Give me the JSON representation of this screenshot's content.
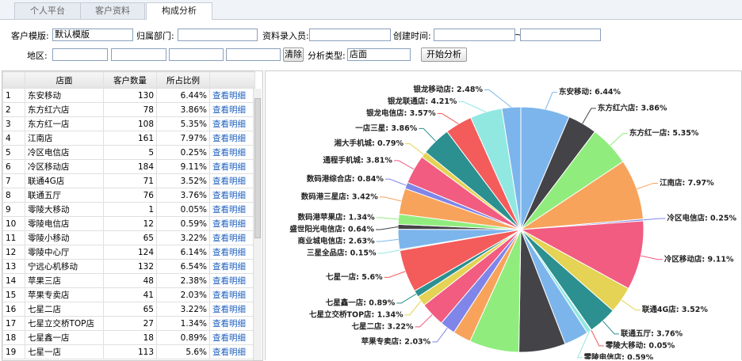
{
  "tabs": [
    "个人平台",
    "客户资料",
    "构成分析"
  ],
  "form": {
    "template_label": "客户模版:",
    "template_value": "默认模版",
    "dept_label": "归属部门:",
    "entry_label": "资料录入员:",
    "created_label": "创建时间:",
    "range_sep": "~",
    "region_label": "地区:",
    "clear_button": "清除",
    "analysis_label": "分析类型:",
    "analysis_value": "店面",
    "start_button": "开始分析"
  },
  "table": {
    "headers": [
      "店面",
      "客户数量",
      "所占比例"
    ],
    "rows": [
      [
        "1",
        "东安移动",
        130,
        "6.44%",
        "查看明细"
      ],
      [
        "2",
        "东方红六店",
        78,
        "3.86%",
        "查看明细"
      ],
      [
        "3",
        "东方红一店",
        108,
        "5.35%",
        "查看明细"
      ],
      [
        "4",
        "江南店",
        161,
        "7.97%",
        "查看明细"
      ],
      [
        "5",
        "冷区电信店",
        5,
        "0.25%",
        "查看明细"
      ],
      [
        "6",
        "冷区移动店",
        184,
        "9.11%",
        "查看明细"
      ],
      [
        "7",
        "联通4G店",
        71,
        "3.52%",
        "查看明细"
      ],
      [
        "8",
        "联通五厅",
        76,
        "3.76%",
        "查看明细"
      ],
      [
        "9",
        "零陵大移动",
        1,
        "0.05%",
        "查看明细"
      ],
      [
        "10",
        "零陵电信店",
        12,
        "0.59%",
        "查看明细"
      ],
      [
        "11",
        "零陵小移动",
        65,
        "3.22%",
        "查看明细"
      ],
      [
        "12",
        "零陵中心厅",
        124,
        "6.14%",
        "查看明细"
      ],
      [
        "13",
        "宁远心机移动",
        132,
        "6.54%",
        "查看明细"
      ],
      [
        "14",
        "苹果三店",
        48,
        "2.38%",
        "查看明细"
      ],
      [
        "15",
        "苹果专卖店",
        41,
        "2.03%",
        "查看明细"
      ],
      [
        "16",
        "七星二店",
        65,
        "3.22%",
        "查看明细"
      ],
      [
        "17",
        "七星立交桥TOP店",
        27,
        "1.34%",
        "查看明细"
      ],
      [
        "18",
        "七星鑫一店",
        18,
        "0.89%",
        "查看明细"
      ],
      [
        "19",
        "七星一店",
        113,
        "5.6%",
        "查看明细"
      ]
    ]
  },
  "chart_data": {
    "type": "pie",
    "values": [
      6.44,
      3.86,
      5.35,
      7.97,
      0.25,
      9.11,
      3.52,
      3.76,
      0.05,
      0.59,
      3.22,
      6.14,
      6.54,
      2.38,
      2.03,
      3.22,
      1.34,
      0.89,
      5.6,
      0.15,
      2.63,
      0.64,
      1.34,
      3.42,
      0.84,
      3.81,
      0.79,
      3.86,
      3.57,
      4.21,
      2.48
    ],
    "value_labels": [
      "东安移动: 6.44%",
      "东方红六店: 3.86%",
      "东方红一店: 5.35%",
      "江南店: 7.97%",
      "冷区电信店: 0.25%",
      "冷区移动店: 9.11%",
      "联通4G店: 3.52%",
      "联通五厅: 3.76%",
      "零陵大移动: 0.05%",
      "零陵电信店: 0.59%",
      null,
      null,
      null,
      null,
      "苹果专卖店: 2.03%",
      "七星二店: 3.22%",
      "七星立交桥TOP店: 1.34%",
      "七星鑫一店: 0.89%",
      "七星一店: 5.6%",
      "三星全品店: 0.15%",
      "商业城电信店: 2.63%",
      "盛世阳光电信店: 0.64%",
      "数码港苹果店: 1.34%",
      "数码港三星店: 3.42%",
      "数码港综合店: 0.84%",
      "通程手机城: 3.81%",
      "湘大手机城: 0.79%",
      "一店三星: 3.86%",
      "银龙电信店: 3.57%",
      "银龙联通店: 4.21%",
      "银龙移动店: 2.48%"
    ],
    "colors": [
      "#7cb5ec",
      "#434348",
      "#90ed7d",
      "#f7a35c",
      "#8085e9",
      "#f15c80",
      "#e4d354",
      "#2b908f",
      "#f45b5b",
      "#91e8e1"
    ]
  }
}
